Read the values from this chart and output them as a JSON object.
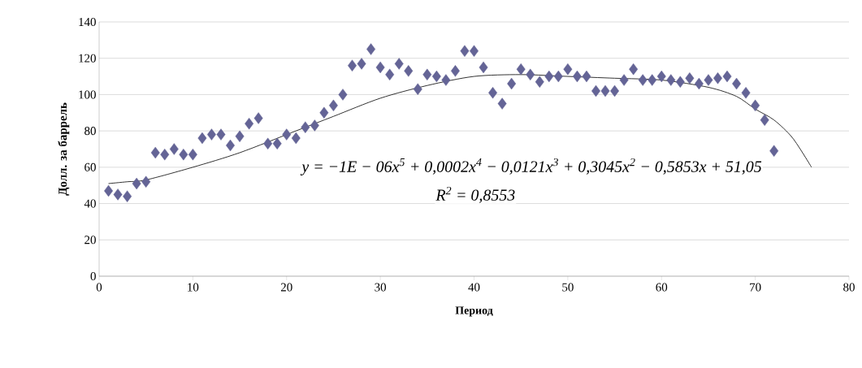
{
  "chart_data": {
    "type": "scatter",
    "xlabel": "Период",
    "ylabel": "Долл. за баррель",
    "xlim": [
      0,
      80
    ],
    "xticks": [
      0,
      10,
      20,
      30,
      40,
      50,
      60,
      70,
      80
    ],
    "ylim": [
      0,
      140
    ],
    "yticks": [
      0,
      20,
      40,
      60,
      80,
      100,
      120,
      140
    ],
    "grid": "y",
    "marker": "diamond",
    "annotations": [
      "y = −1E − 06x$^{5}$ + 0,0002x$^{4}$ − 0,0121x$^{3}$ + 0,3045x$^{2}$ − 0,5853x + 51,05",
      "R$^{2}$ = 0,8553"
    ],
    "series": [
      {
        "color": "#646496",
        "x": [
          1,
          2,
          3,
          4,
          5,
          6,
          7,
          8,
          9,
          10,
          11,
          12,
          13,
          14,
          15,
          16,
          17,
          18,
          19,
          20,
          21,
          22,
          23,
          24,
          25,
          26,
          27,
          28,
          29,
          30,
          31,
          32,
          33,
          34,
          35,
          36,
          37,
          38,
          39,
          40,
          41,
          42,
          43,
          44,
          45,
          46,
          47,
          48,
          49,
          50,
          51,
          52,
          53,
          54,
          55,
          56,
          57,
          58,
          59,
          60,
          61,
          62,
          63,
          64,
          65,
          66,
          67,
          68,
          69,
          70,
          71,
          72
        ],
        "values": [
          47,
          45,
          44,
          51,
          52,
          68,
          67,
          70,
          67,
          67,
          76,
          78,
          78,
          72,
          77,
          84,
          87,
          73,
          73,
          78,
          76,
          82,
          83,
          90,
          94,
          100,
          116,
          117,
          125,
          115,
          111,
          117,
          113,
          103,
          111,
          110,
          108,
          113,
          124,
          124,
          115,
          101,
          95,
          106,
          114,
          111,
          107,
          110,
          110,
          114,
          110,
          110,
          102,
          102,
          102,
          108,
          114,
          108,
          108,
          110,
          108,
          107,
          109,
          106,
          108,
          109,
          110,
          106,
          101,
          94,
          86,
          69
        ]
      },
      {
        "type": "line",
        "marker": "none",
        "color": "#000000",
        "x": [
          1,
          3,
          5,
          10,
          15,
          21,
          25,
          30,
          35,
          40,
          45,
          50,
          55,
          60,
          65,
          68,
          70,
          72,
          74,
          76
        ],
        "values": [
          51,
          52,
          53,
          60,
          68,
          80,
          88,
          98,
          105,
          110,
          111,
          110,
          109,
          108,
          104,
          99,
          92,
          86,
          76,
          60
        ]
      }
    ]
  }
}
